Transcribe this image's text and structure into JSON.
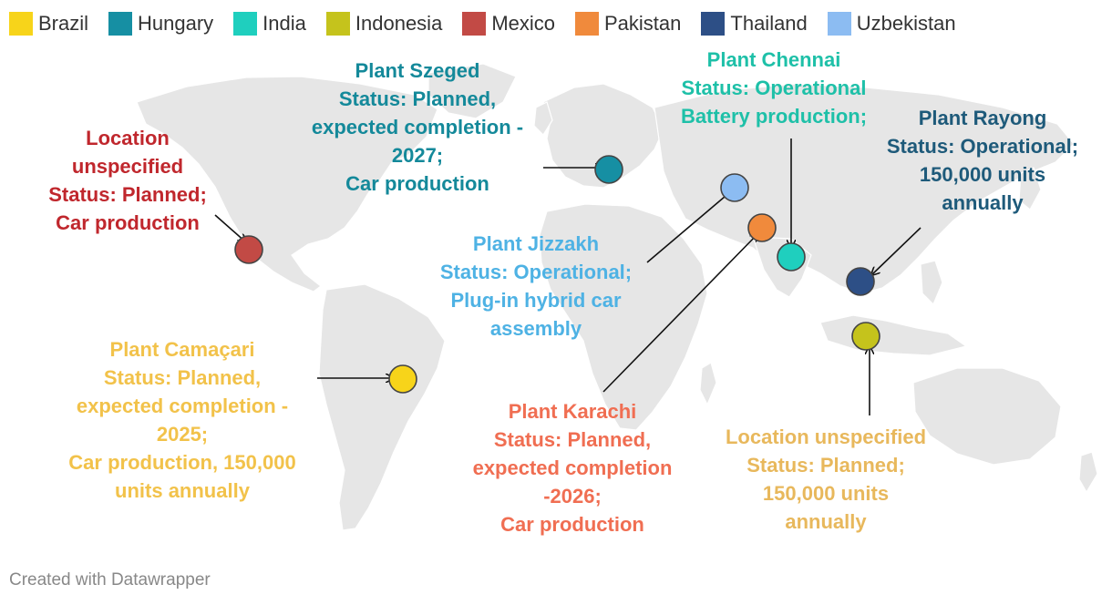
{
  "legend": [
    {
      "name": "Brazil",
      "color": "#f7d41a"
    },
    {
      "name": "Hungary",
      "color": "#168fa3"
    },
    {
      "name": "India",
      "color": "#1fcfbe"
    },
    {
      "name": "Indonesia",
      "color": "#c5c31c"
    },
    {
      "name": "Mexico",
      "color": "#c24a45"
    },
    {
      "name": "Pakistan",
      "color": "#f08a3c"
    },
    {
      "name": "Thailand",
      "color": "#2d4f86"
    },
    {
      "name": "Uzbekistan",
      "color": "#8cbcf2"
    }
  ],
  "callouts": {
    "mexico": {
      "text": "Location\nunspecified\nStatus: Planned;\nCar production",
      "color": "#c0272d"
    },
    "hungary": {
      "text": "Plant Szeged\nStatus: Planned,\nexpected completion -\n2027;\nCar production",
      "color": "#14899a"
    },
    "india": {
      "text": "Plant Chennai\nStatus: Operational\nBattery production;",
      "color": "#1ec0a8"
    },
    "thailand": {
      "text": "Plant Rayong\nStatus: Operational;\n150,000 units\nannually",
      "color": "#1e5a7a"
    },
    "uzbekistan": {
      "text": "Plant Jizzakh\nStatus: Operational;\nPlug-in hybrid car\nassembly",
      "color": "#4eb2e4"
    },
    "brazil": {
      "text": "Plant Camaçari\nStatus: Planned,\nexpected completion -\n2025;\nCar production, 150,000\nunits annually",
      "color": "#f2c24a"
    },
    "pakistan": {
      "text": "Plant Karachi\nStatus: Planned,\nexpected completion\n-2026;\nCar production",
      "color": "#f06e52"
    },
    "indonesia": {
      "text": "Location unspecified\nStatus: Planned;\n150,000 units\nannually",
      "color": "#e8b85c"
    }
  },
  "credit": "Created with Datawrapper"
}
